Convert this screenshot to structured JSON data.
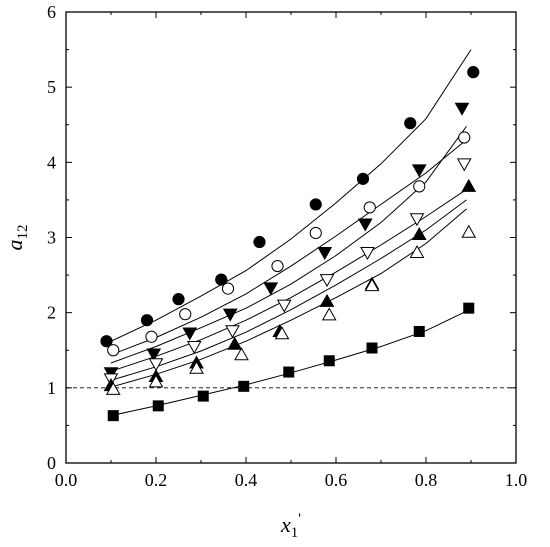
{
  "chart_data": {
    "type": "scatter",
    "xlabel": "x",
    "xlabel_sub": "1",
    "xlabel_sup": "'",
    "ylabel": "a",
    "ylabel_sub": "12",
    "xlim": [
      0.0,
      1.0
    ],
    "ylim": [
      0,
      6
    ],
    "xticks": [
      "0.0",
      "0.2",
      "0.4",
      "0.6",
      "0.8",
      "1.0"
    ],
    "yticks": [
      "0",
      "1",
      "2",
      "3",
      "4",
      "5",
      "6"
    ],
    "grid": false,
    "legend": "none",
    "reference_line": {
      "y": 1,
      "style": "dashed"
    },
    "series": [
      {
        "marker": "filled-circle",
        "points": [
          [
            0.09,
            1.62
          ],
          [
            0.18,
            1.9
          ],
          [
            0.25,
            2.18
          ],
          [
            0.345,
            2.44
          ],
          [
            0.43,
            2.94
          ],
          [
            0.555,
            3.44
          ],
          [
            0.66,
            3.78
          ],
          [
            0.765,
            4.52
          ],
          [
            0.905,
            5.2
          ]
        ],
        "fit": [
          [
            0.1,
            1.62
          ],
          [
            0.2,
            1.9
          ],
          [
            0.3,
            2.22
          ],
          [
            0.4,
            2.56
          ],
          [
            0.5,
            2.98
          ],
          [
            0.6,
            3.46
          ],
          [
            0.7,
            3.98
          ],
          [
            0.8,
            4.58
          ],
          [
            0.9,
            5.5
          ]
        ]
      },
      {
        "marker": "filled-triangle-down",
        "points": [
          [
            0.1,
            1.2
          ],
          [
            0.195,
            1.45
          ],
          [
            0.275,
            1.73
          ],
          [
            0.365,
            1.98
          ],
          [
            0.455,
            2.33
          ],
          [
            0.575,
            2.8
          ],
          [
            0.665,
            3.18
          ],
          [
            0.785,
            3.9
          ],
          [
            0.88,
            4.72
          ]
        ],
        "fit": [
          [
            0.1,
            1.33
          ],
          [
            0.2,
            1.55
          ],
          [
            0.3,
            1.8
          ],
          [
            0.4,
            2.06
          ],
          [
            0.5,
            2.38
          ],
          [
            0.6,
            2.76
          ],
          [
            0.7,
            3.2
          ],
          [
            0.8,
            3.74
          ],
          [
            0.89,
            4.48
          ]
        ]
      },
      {
        "marker": "open-circle",
        "points": [
          [
            0.105,
            1.5
          ],
          [
            0.19,
            1.68
          ],
          [
            0.265,
            1.98
          ],
          [
            0.36,
            2.32
          ],
          [
            0.47,
            2.62
          ],
          [
            0.555,
            3.06
          ],
          [
            0.675,
            3.4
          ],
          [
            0.785,
            3.68
          ],
          [
            0.885,
            4.33
          ]
        ],
        "fit": [
          [
            0.1,
            1.44
          ],
          [
            0.2,
            1.67
          ],
          [
            0.3,
            1.94
          ],
          [
            0.4,
            2.25
          ],
          [
            0.5,
            2.62
          ],
          [
            0.6,
            3.02
          ],
          [
            0.7,
            3.44
          ],
          [
            0.8,
            3.86
          ],
          [
            0.89,
            4.3
          ]
        ]
      },
      {
        "marker": "open-triangle-down",
        "points": [
          [
            0.1,
            1.12
          ],
          [
            0.2,
            1.32
          ],
          [
            0.285,
            1.55
          ],
          [
            0.37,
            1.76
          ],
          [
            0.485,
            2.1
          ],
          [
            0.58,
            2.44
          ],
          [
            0.67,
            2.8
          ],
          [
            0.78,
            3.25
          ],
          [
            0.885,
            3.98
          ]
        ],
        "fit": [
          [
            0.1,
            1.22
          ],
          [
            0.2,
            1.42
          ],
          [
            0.3,
            1.64
          ],
          [
            0.4,
            1.9
          ],
          [
            0.5,
            2.2
          ],
          [
            0.6,
            2.54
          ],
          [
            0.7,
            2.9
          ],
          [
            0.8,
            3.28
          ],
          [
            0.89,
            3.64
          ]
        ]
      },
      {
        "marker": "filled-triangle-up",
        "points": [
          [
            0.1,
            1.03
          ],
          [
            0.2,
            1.15
          ],
          [
            0.29,
            1.33
          ],
          [
            0.375,
            1.58
          ],
          [
            0.475,
            1.75
          ],
          [
            0.58,
            2.15
          ],
          [
            0.68,
            2.38
          ],
          [
            0.785,
            3.04
          ],
          [
            0.895,
            3.68
          ]
        ],
        "fit": [
          [
            0.1,
            1.1
          ],
          [
            0.2,
            1.28
          ],
          [
            0.3,
            1.49
          ],
          [
            0.4,
            1.74
          ],
          [
            0.5,
            2.04
          ],
          [
            0.6,
            2.37
          ],
          [
            0.7,
            2.72
          ],
          [
            0.8,
            3.1
          ],
          [
            0.89,
            3.5
          ]
        ]
      },
      {
        "marker": "open-triangle-up",
        "points": [
          [
            0.105,
            0.98
          ],
          [
            0.2,
            1.08
          ],
          [
            0.29,
            1.26
          ],
          [
            0.39,
            1.44
          ],
          [
            0.48,
            1.72
          ],
          [
            0.585,
            1.97
          ],
          [
            0.68,
            2.36
          ],
          [
            0.78,
            2.8
          ],
          [
            0.895,
            3.07
          ]
        ],
        "fit": [
          [
            0.1,
            1.01
          ],
          [
            0.2,
            1.18
          ],
          [
            0.3,
            1.38
          ],
          [
            0.4,
            1.62
          ],
          [
            0.5,
            1.9
          ],
          [
            0.6,
            2.2
          ],
          [
            0.7,
            2.52
          ],
          [
            0.8,
            2.92
          ],
          [
            0.89,
            3.38
          ]
        ]
      },
      {
        "marker": "filled-square",
        "points": [
          [
            0.105,
            0.63
          ],
          [
            0.205,
            0.76
          ],
          [
            0.305,
            0.89
          ],
          [
            0.395,
            1.02
          ],
          [
            0.495,
            1.21
          ],
          [
            0.585,
            1.36
          ],
          [
            0.68,
            1.53
          ],
          [
            0.785,
            1.75
          ],
          [
            0.895,
            2.06
          ]
        ],
        "fit": [
          [
            0.1,
            0.63
          ],
          [
            0.2,
            0.76
          ],
          [
            0.3,
            0.9
          ],
          [
            0.4,
            1.04
          ],
          [
            0.5,
            1.2
          ],
          [
            0.6,
            1.37
          ],
          [
            0.7,
            1.55
          ],
          [
            0.8,
            1.76
          ],
          [
            0.89,
            2.02
          ]
        ]
      }
    ]
  }
}
